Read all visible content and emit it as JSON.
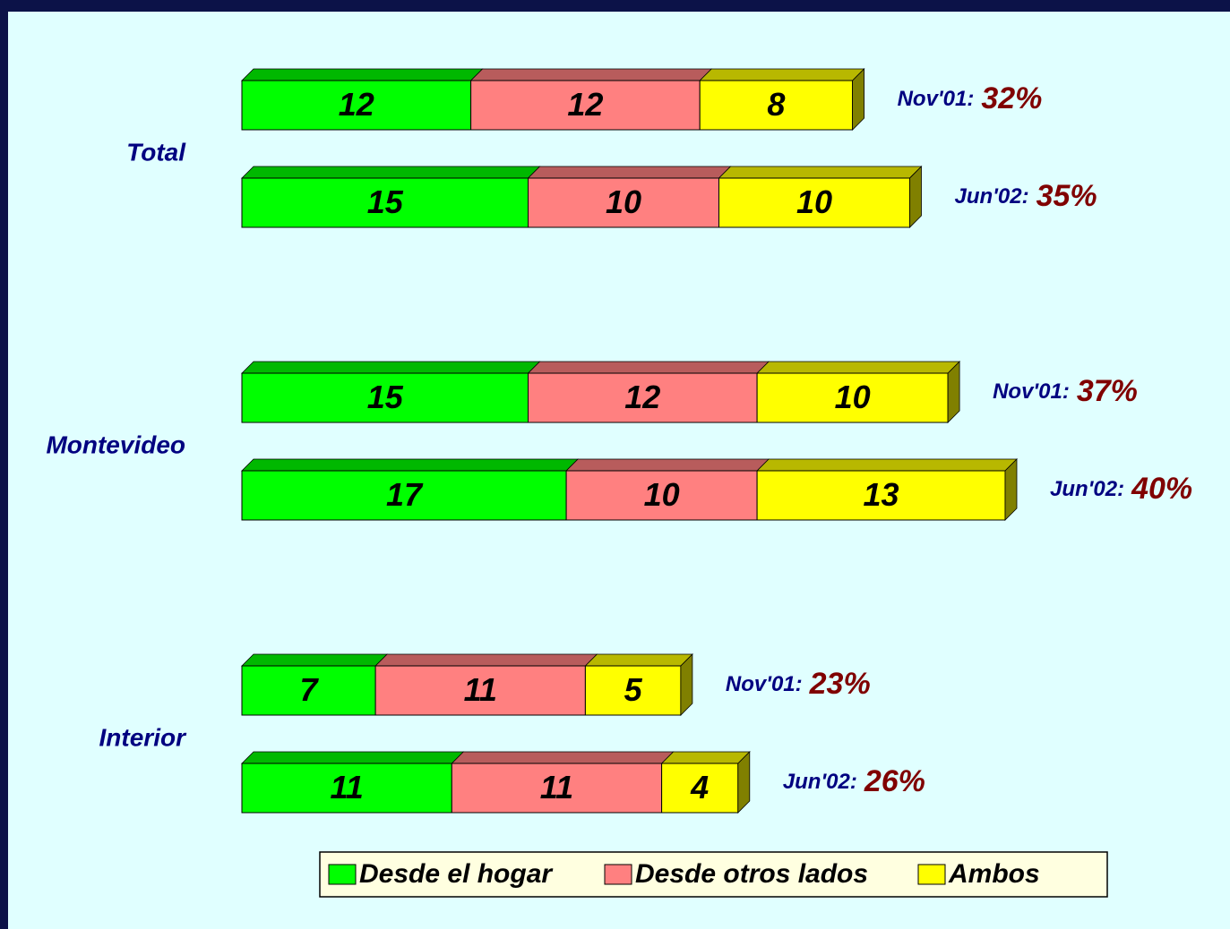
{
  "chart_data": {
    "type": "stacked-bar-3d",
    "groups": [
      "Total",
      "Montevideo",
      "Interior"
    ],
    "categories": [
      "Nov'01:",
      "Jun'02:",
      "Nov'01:",
      "Jun'02:",
      "Nov'01:",
      "Jun'02:"
    ],
    "totals": [
      32,
      35,
      37,
      40,
      23,
      26
    ],
    "total_labels": [
      "32%",
      "35%",
      "37%",
      "40%",
      "23%",
      "26%"
    ],
    "series": [
      {
        "name": "Desde el hogar",
        "color": "#00ff00",
        "values": [
          12,
          15,
          15,
          17,
          7,
          11
        ]
      },
      {
        "name": "Desde otros lados",
        "color": "#ff8080",
        "values": [
          12,
          10,
          12,
          10,
          11,
          11
        ]
      },
      {
        "name": "Ambos",
        "color": "#ffff00",
        "values": [
          8,
          10,
          10,
          13,
          5,
          4
        ]
      }
    ],
    "legend": "bottom"
  }
}
